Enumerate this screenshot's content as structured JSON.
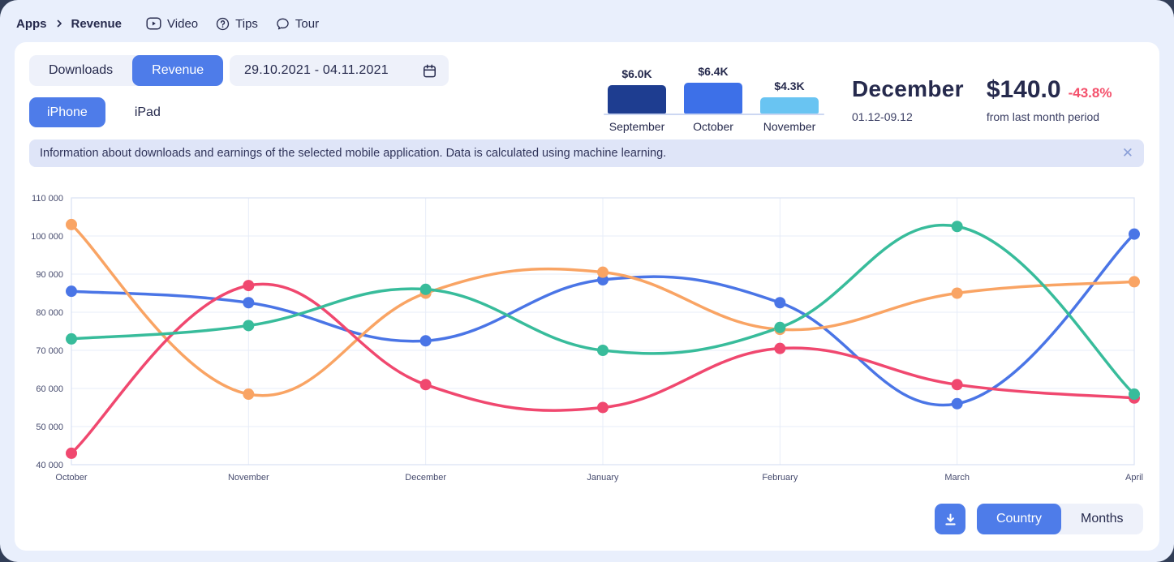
{
  "breadcrumb": {
    "items": [
      {
        "label": "Apps"
      },
      {
        "label": "Revenue"
      }
    ],
    "nav": [
      {
        "icon": "video-icon",
        "label": "Video"
      },
      {
        "icon": "help-icon",
        "label": "Tips"
      },
      {
        "icon": "chat-icon",
        "label": "Tour"
      }
    ]
  },
  "toolbar": {
    "tabs": [
      {
        "label": "Downloads",
        "active": false
      },
      {
        "label": "Revenue",
        "active": true
      }
    ],
    "date_range": "29.10.2021 - 04.11.2021",
    "devices": [
      {
        "label": "iPhone",
        "active": true
      },
      {
        "label": "iPad",
        "active": false
      }
    ]
  },
  "mini_chart": {
    "type": "bar",
    "categories": [
      "September",
      "October",
      "November"
    ],
    "labels": [
      "$6.0K",
      "$6.4K",
      "$4.3K"
    ],
    "values": [
      6000,
      6400,
      4300
    ],
    "colors": [
      "#1e3d90",
      "#3d70e8",
      "#69c4f2"
    ]
  },
  "summary": {
    "month": "December",
    "period": "01.12-09.12",
    "value": "$140.0",
    "change": "-43.8%",
    "change_color": "#f4516c",
    "note": "from last month period"
  },
  "banner": {
    "text": "Information about downloads and earnings of the selected mobile application. Data is calculated using machine learning.",
    "close_glyph": "✕"
  },
  "chart_data": {
    "type": "line",
    "categories": [
      "October",
      "November",
      "December",
      "January",
      "February",
      "March",
      "April"
    ],
    "series": [
      {
        "name": "blue",
        "color": "#4a75e6",
        "values": [
          85500,
          82500,
          72500,
          88500,
          82500,
          56000,
          100500
        ]
      },
      {
        "name": "orange",
        "color": "#f9a464",
        "values": [
          103000,
          58500,
          85000,
          90500,
          75500,
          85000,
          88000
        ]
      },
      {
        "name": "red",
        "color": "#f0486f",
        "values": [
          43000,
          87000,
          61000,
          55000,
          70500,
          61000,
          57500
        ]
      },
      {
        "name": "green",
        "color": "#38bc9b",
        "values": [
          73000,
          76500,
          86000,
          70000,
          76000,
          102500,
          58500
        ]
      }
    ],
    "ylim": [
      40000,
      110000
    ],
    "ytick_step": 10000,
    "grid": true,
    "legend": "none",
    "point_radius": 7,
    "grid_color": "#e7ecf8",
    "border_color": "#d8e1f4",
    "tick_color": "#464b6e"
  },
  "footer": {
    "download_icon": "download-icon",
    "buttons": [
      {
        "label": "Country",
        "active": true
      },
      {
        "label": "Months",
        "active": false
      }
    ]
  }
}
